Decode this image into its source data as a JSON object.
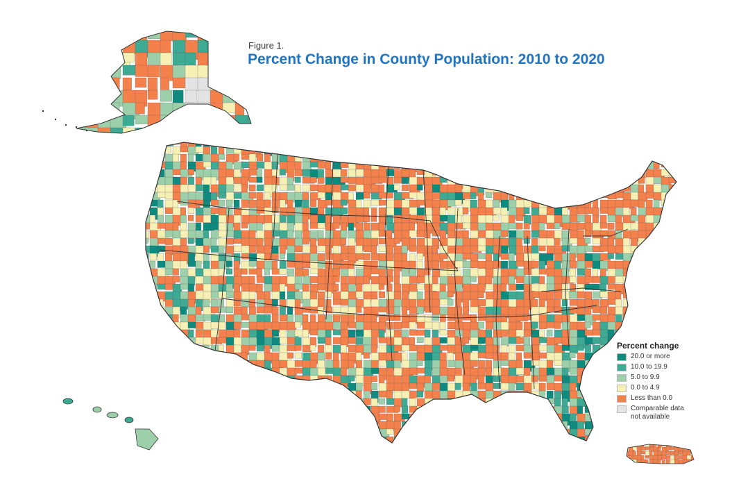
{
  "figure_label": "Figure 1.",
  "title": "Percent Change in County Population: 2010 to 2020",
  "colors": {
    "c20": "#0e8a7e",
    "c10": "#3eaa94",
    "c5": "#9dcfaa",
    "c0": "#f6f0b4",
    "neg": "#f4814c",
    "na": "#e3e3e3",
    "border": "#333333"
  },
  "legend": {
    "title": "Percent change",
    "items": [
      {
        "label": "20.0 or more",
        "color": "#0e8a7e"
      },
      {
        "label": "10.0 to 19.9",
        "color": "#3eaa94"
      },
      {
        "label": "5.0 to 9.9",
        "color": "#9dcfaa"
      },
      {
        "label": "0.0 to 4.9",
        "color": "#f6f0b4"
      },
      {
        "label": "Less than 0.0",
        "color": "#f4814c"
      },
      {
        "label": "Comparable data\nnot available",
        "color": "#e3e3e3"
      }
    ]
  }
}
